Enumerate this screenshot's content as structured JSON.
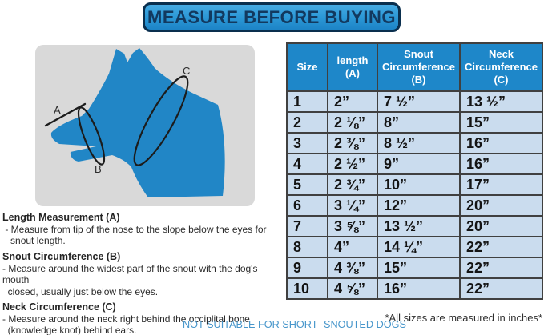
{
  "banner": {
    "title": "MEASURE BEFORE BUYING"
  },
  "colors": {
    "banner_fill": "#2E9AD8",
    "banner_border": "#0A2F4E",
    "header_blue": "#1E87C9",
    "row_blue": "#CADCEE",
    "dog_blue": "#2186C6",
    "panel_gray": "#D9D9D9",
    "link_blue": "#4796CB"
  },
  "diagram": {
    "labels": [
      "A",
      "B",
      "C"
    ]
  },
  "table": {
    "headers": [
      "Size",
      "length\n(A)",
      "Snout\nCircumference\n(B)",
      "Neck\nCircumference\n(C)"
    ],
    "rows": [
      [
        "1",
        "2”",
        "7 ½”",
        "13 ½”"
      ],
      [
        "2",
        "2 ⅛”",
        "8”",
        "15”"
      ],
      [
        "3",
        "2 ⅜”",
        "8 ½”",
        "16”"
      ],
      [
        "4",
        "2 ½”",
        "9”",
        "16”"
      ],
      [
        "5",
        "2 ¾”",
        "10”",
        "17”"
      ],
      [
        "6",
        "3 ¼”",
        "12”",
        "20”"
      ],
      [
        "7",
        "3 ⅝”",
        "13 ½”",
        "20”"
      ],
      [
        "8",
        "4”",
        "14 ¼”",
        "22”"
      ],
      [
        "9",
        "4 ⅜”",
        "15”",
        "22”"
      ],
      [
        "10",
        "4 ⅝”",
        "16”",
        "22”"
      ]
    ],
    "footnote": "*All sizes are measured in inches*"
  },
  "instructions": [
    {
      "heading": "Length Measurement (A)",
      "body": " - Measure from tip of the nose to the slope below the eyes for\n   snout length."
    },
    {
      "heading": "Snout Circumference (B)",
      "body": "- Measure around the widest part of the snout with the dog's mouth\n  closed, usually just below the eyes."
    },
    {
      "heading": "Neck Circumference (C)",
      "body": "- Measure around the neck right behind the occiplital bone\n  (knowledge knot) behind ears."
    }
  ],
  "warning": "NOT SUITABLE FOR SHORT -SNOUTED DOGS"
}
